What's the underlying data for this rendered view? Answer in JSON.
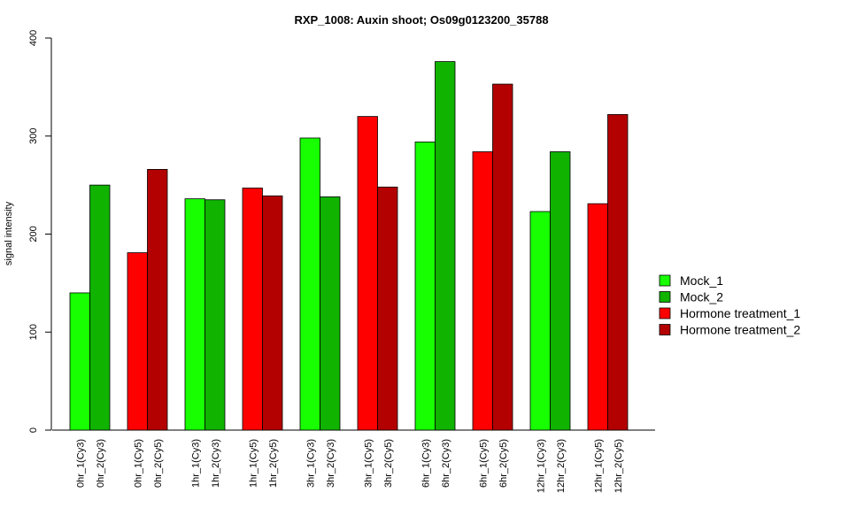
{
  "chart_data": {
    "type": "bar",
    "title": "RXP_1008: Auxin shoot; Os09g0123200_35788",
    "ylabel": "signal intensity",
    "xlabel": "",
    "ylim": [
      0,
      400
    ],
    "yticks": [
      0,
      100,
      200,
      300,
      400
    ],
    "grid": false,
    "legend_position": "right",
    "series": [
      {
        "name": "Mock_1",
        "color": "#17ff00"
      },
      {
        "name": "Mock_2",
        "color": "#0fb300"
      },
      {
        "name": "Hormone treatment_1",
        "color": "#ff0000"
      },
      {
        "name": "Hormone treatment_2",
        "color": "#b30000"
      }
    ],
    "groups": [
      {
        "bars": [
          {
            "label": "0hr_1(Cy3)",
            "value": 140,
            "series": 0
          },
          {
            "label": "0hr_2(Cy3)",
            "value": 250,
            "series": 1
          }
        ]
      },
      {
        "bars": [
          {
            "label": "0hr_1(Cy5)",
            "value": 181,
            "series": 2
          },
          {
            "label": "0hr_2(Cy5)",
            "value": 266,
            "series": 3
          }
        ]
      },
      {
        "bars": [
          {
            "label": "1hr_1(Cy3)",
            "value": 236,
            "series": 0
          },
          {
            "label": "1hr_2(Cy3)",
            "value": 235,
            "series": 1
          }
        ]
      },
      {
        "bars": [
          {
            "label": "1hr_1(Cy5)",
            "value": 247,
            "series": 2
          },
          {
            "label": "1hr_2(Cy5)",
            "value": 239,
            "series": 3
          }
        ]
      },
      {
        "bars": [
          {
            "label": "3hr_1(Cy3)",
            "value": 298,
            "series": 0
          },
          {
            "label": "3hr_2(Cy3)",
            "value": 238,
            "series": 1
          }
        ]
      },
      {
        "bars": [
          {
            "label": "3hr_1(Cy5)",
            "value": 320,
            "series": 2
          },
          {
            "label": "3hr_2(Cy5)",
            "value": 248,
            "series": 3
          }
        ]
      },
      {
        "bars": [
          {
            "label": "6hr_1(Cy3)",
            "value": 294,
            "series": 0
          },
          {
            "label": "6hr_2(Cy3)",
            "value": 376,
            "series": 1
          }
        ]
      },
      {
        "bars": [
          {
            "label": "6hr_1(Cy5)",
            "value": 284,
            "series": 2
          },
          {
            "label": "6hr_2(Cy5)",
            "value": 353,
            "series": 3
          }
        ]
      },
      {
        "bars": [
          {
            "label": "12hr_1(Cy3)",
            "value": 223,
            "series": 0
          },
          {
            "label": "12hr_2(Cy3)",
            "value": 284,
            "series": 1
          }
        ]
      },
      {
        "bars": [
          {
            "label": "12hr_1(Cy5)",
            "value": 231,
            "series": 2
          },
          {
            "label": "12hr_2(Cy5)",
            "value": 322,
            "series": 3
          }
        ]
      }
    ]
  }
}
